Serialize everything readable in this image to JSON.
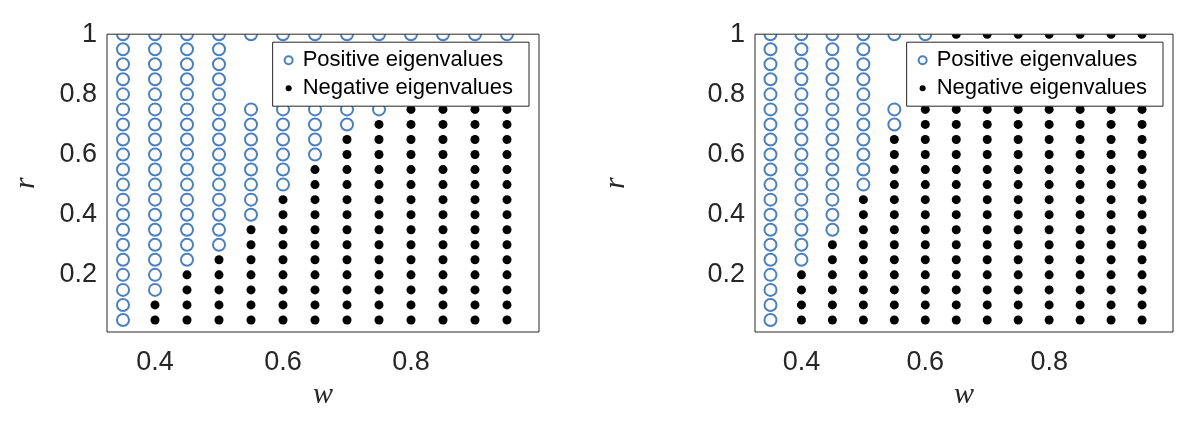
{
  "chart_data": [
    {
      "type": "scatter",
      "xlabel": "w",
      "ylabel": "r",
      "xlim": [
        0.325,
        1
      ],
      "ylim": [
        0.01,
        1
      ],
      "xticks": [
        0.4,
        0.6,
        0.8
      ],
      "yticks": [
        0.2,
        0.4,
        0.6,
        0.8,
        1
      ],
      "legend": "top right",
      "series": [
        {
          "name": "Positive eigenvalues",
          "color": "#4a80bf",
          "x": [
            0.35,
            0.35,
            0.35,
            0.4,
            0.35,
            0.4,
            0.35,
            0.4,
            0.45,
            0.35,
            0.4,
            0.45,
            0.5,
            0.35,
            0.4,
            0.45,
            0.5,
            0.35,
            0.4,
            0.45,
            0.5,
            0.55,
            0.35,
            0.4,
            0.45,
            0.5,
            0.55,
            0.35,
            0.4,
            0.45,
            0.5,
            0.55,
            0.6,
            0.35,
            0.4,
            0.45,
            0.5,
            0.55,
            0.6,
            0.35,
            0.4,
            0.45,
            0.5,
            0.55,
            0.6,
            0.65,
            0.35,
            0.4,
            0.45,
            0.5,
            0.55,
            0.6,
            0.65,
            0.35,
            0.4,
            0.45,
            0.5,
            0.55,
            0.6,
            0.65,
            0.7,
            0.35,
            0.4,
            0.45,
            0.5,
            0.55,
            0.6,
            0.65,
            0.7,
            0.75,
            0.35,
            0.4,
            0.45,
            0.5,
            0.35,
            0.4,
            0.45,
            0.5,
            0.35,
            0.4,
            0.45,
            0.5,
            0.35,
            0.4,
            0.45,
            0.5,
            0.35,
            0.4,
            0.45,
            0.5,
            0.55,
            0.6,
            0.65,
            0.7,
            0.75,
            0.8,
            0.85,
            0.9,
            0.95
          ],
          "values": [
            0.05,
            0.1,
            0.15,
            0.15,
            0.2,
            0.2,
            0.25,
            0.25,
            0.25,
            0.3,
            0.3,
            0.3,
            0.3,
            0.35,
            0.35,
            0.35,
            0.35,
            0.4,
            0.4,
            0.4,
            0.4,
            0.4,
            0.45,
            0.45,
            0.45,
            0.45,
            0.45,
            0.5,
            0.5,
            0.5,
            0.5,
            0.5,
            0.5,
            0.55,
            0.55,
            0.55,
            0.55,
            0.55,
            0.55,
            0.6,
            0.6,
            0.6,
            0.6,
            0.6,
            0.6,
            0.6,
            0.65,
            0.65,
            0.65,
            0.65,
            0.65,
            0.65,
            0.65,
            0.7,
            0.7,
            0.7,
            0.7,
            0.7,
            0.7,
            0.7,
            0.7,
            0.75,
            0.75,
            0.75,
            0.75,
            0.75,
            0.75,
            0.75,
            0.75,
            0.75,
            0.8,
            0.8,
            0.8,
            0.8,
            0.85,
            0.85,
            0.85,
            0.85,
            0.9,
            0.9,
            0.9,
            0.9,
            0.95,
            0.95,
            0.95,
            0.95,
            1,
            1,
            1,
            1,
            1,
            1,
            1,
            1,
            1,
            1,
            1,
            1,
            1
          ]
        },
        {
          "name": "Negative eigenvalues",
          "color": "#000000",
          "x": [
            0.4,
            0.45,
            0.5,
            0.55,
            0.6,
            0.65,
            0.7,
            0.75,
            0.8,
            0.85,
            0.9,
            0.95,
            0.4,
            0.45,
            0.5,
            0.55,
            0.6,
            0.65,
            0.7,
            0.75,
            0.8,
            0.85,
            0.9,
            0.95,
            0.45,
            0.5,
            0.55,
            0.6,
            0.65,
            0.7,
            0.75,
            0.8,
            0.85,
            0.9,
            0.95,
            0.45,
            0.5,
            0.55,
            0.6,
            0.65,
            0.7,
            0.75,
            0.8,
            0.85,
            0.9,
            0.95,
            0.5,
            0.55,
            0.6,
            0.65,
            0.7,
            0.75,
            0.8,
            0.85,
            0.9,
            0.95,
            0.55,
            0.6,
            0.65,
            0.7,
            0.75,
            0.8,
            0.85,
            0.9,
            0.95,
            0.55,
            0.6,
            0.65,
            0.7,
            0.75,
            0.8,
            0.85,
            0.9,
            0.95,
            0.6,
            0.65,
            0.7,
            0.75,
            0.8,
            0.85,
            0.9,
            0.95,
            0.6,
            0.65,
            0.7,
            0.75,
            0.8,
            0.85,
            0.9,
            0.95,
            0.65,
            0.7,
            0.75,
            0.8,
            0.85,
            0.9,
            0.95,
            0.65,
            0.7,
            0.75,
            0.8,
            0.85,
            0.9,
            0.95,
            0.7,
            0.75,
            0.8,
            0.85,
            0.9,
            0.95,
            0.7,
            0.75,
            0.8,
            0.85,
            0.9,
            0.95,
            0.75,
            0.8,
            0.85,
            0.9,
            0.95,
            0.8,
            0.85,
            0.9,
            0.95
          ],
          "values": [
            0.05,
            0.05,
            0.05,
            0.05,
            0.05,
            0.05,
            0.05,
            0.05,
            0.05,
            0.05,
            0.05,
            0.05,
            0.1,
            0.1,
            0.1,
            0.1,
            0.1,
            0.1,
            0.1,
            0.1,
            0.1,
            0.1,
            0.1,
            0.1,
            0.15,
            0.15,
            0.15,
            0.15,
            0.15,
            0.15,
            0.15,
            0.15,
            0.15,
            0.15,
            0.15,
            0.2,
            0.2,
            0.2,
            0.2,
            0.2,
            0.2,
            0.2,
            0.2,
            0.2,
            0.2,
            0.2,
            0.25,
            0.25,
            0.25,
            0.25,
            0.25,
            0.25,
            0.25,
            0.25,
            0.25,
            0.25,
            0.3,
            0.3,
            0.3,
            0.3,
            0.3,
            0.3,
            0.3,
            0.3,
            0.3,
            0.35,
            0.35,
            0.35,
            0.35,
            0.35,
            0.35,
            0.35,
            0.35,
            0.35,
            0.4,
            0.4,
            0.4,
            0.4,
            0.4,
            0.4,
            0.4,
            0.4,
            0.45,
            0.45,
            0.45,
            0.45,
            0.45,
            0.45,
            0.45,
            0.45,
            0.5,
            0.5,
            0.5,
            0.5,
            0.5,
            0.5,
            0.5,
            0.55,
            0.55,
            0.55,
            0.55,
            0.55,
            0.55,
            0.55,
            0.6,
            0.6,
            0.6,
            0.6,
            0.6,
            0.6,
            0.65,
            0.65,
            0.65,
            0.65,
            0.65,
            0.65,
            0.7,
            0.7,
            0.7,
            0.7,
            0.7,
            0.75,
            0.75,
            0.75,
            0.75
          ]
        }
      ]
    },
    {
      "type": "scatter",
      "xlabel": "w",
      "ylabel": "r",
      "xlim": [
        0.325,
        1
      ],
      "ylim": [
        0.01,
        1
      ],
      "xticks": [
        0.4,
        0.6,
        0.8
      ],
      "yticks": [
        0.2,
        0.4,
        0.6,
        0.8,
        1
      ],
      "legend": "top right",
      "series": [
        {
          "name": "Positive eigenvalues",
          "color": "#4a80bf",
          "x": [
            0.35,
            0.35,
            0.35,
            0.35,
            0.35,
            0.4,
            0.35,
            0.4,
            0.35,
            0.4,
            0.45,
            0.35,
            0.4,
            0.45,
            0.35,
            0.4,
            0.45,
            0.35,
            0.4,
            0.45,
            0.5,
            0.35,
            0.4,
            0.45,
            0.5,
            0.35,
            0.4,
            0.45,
            0.5,
            0.35,
            0.4,
            0.45,
            0.5,
            0.35,
            0.4,
            0.45,
            0.5,
            0.55,
            0.35,
            0.4,
            0.45,
            0.5,
            0.55,
            0.35,
            0.4,
            0.45,
            0.5,
            0.35,
            0.4,
            0.45,
            0.5,
            0.35,
            0.4,
            0.45,
            0.5,
            0.35,
            0.4,
            0.45,
            0.5,
            0.35,
            0.4,
            0.45,
            0.5,
            0.55,
            0.6
          ],
          "values": [
            0.05,
            0.1,
            0.15,
            0.2,
            0.25,
            0.25,
            0.3,
            0.3,
            0.35,
            0.35,
            0.35,
            0.4,
            0.4,
            0.4,
            0.45,
            0.45,
            0.45,
            0.5,
            0.5,
            0.5,
            0.5,
            0.55,
            0.55,
            0.55,
            0.55,
            0.6,
            0.6,
            0.6,
            0.6,
            0.65,
            0.65,
            0.65,
            0.65,
            0.7,
            0.7,
            0.7,
            0.7,
            0.7,
            0.75,
            0.75,
            0.75,
            0.75,
            0.75,
            0.8,
            0.8,
            0.8,
            0.8,
            0.85,
            0.85,
            0.85,
            0.85,
            0.9,
            0.9,
            0.9,
            0.9,
            0.95,
            0.95,
            0.95,
            0.95,
            1,
            1,
            1,
            1,
            1,
            1
          ]
        },
        {
          "name": "Negative eigenvalues",
          "color": "#000000",
          "x": [
            0.4,
            0.45,
            0.5,
            0.55,
            0.6,
            0.65,
            0.7,
            0.75,
            0.8,
            0.85,
            0.9,
            0.95,
            0.4,
            0.45,
            0.5,
            0.55,
            0.6,
            0.65,
            0.7,
            0.75,
            0.8,
            0.85,
            0.9,
            0.95,
            0.4,
            0.45,
            0.5,
            0.55,
            0.6,
            0.65,
            0.7,
            0.75,
            0.8,
            0.85,
            0.9,
            0.95,
            0.4,
            0.45,
            0.5,
            0.55,
            0.6,
            0.65,
            0.7,
            0.75,
            0.8,
            0.85,
            0.9,
            0.95,
            0.45,
            0.5,
            0.55,
            0.6,
            0.65,
            0.7,
            0.75,
            0.8,
            0.85,
            0.9,
            0.95,
            0.45,
            0.5,
            0.55,
            0.6,
            0.65,
            0.7,
            0.75,
            0.8,
            0.85,
            0.9,
            0.95,
            0.5,
            0.55,
            0.6,
            0.65,
            0.7,
            0.75,
            0.8,
            0.85,
            0.9,
            0.95,
            0.5,
            0.55,
            0.6,
            0.65,
            0.7,
            0.75,
            0.8,
            0.85,
            0.9,
            0.95,
            0.5,
            0.55,
            0.6,
            0.65,
            0.7,
            0.75,
            0.8,
            0.85,
            0.9,
            0.95,
            0.55,
            0.6,
            0.65,
            0.7,
            0.75,
            0.8,
            0.85,
            0.9,
            0.95,
            0.55,
            0.6,
            0.65,
            0.7,
            0.75,
            0.8,
            0.85,
            0.9,
            0.95,
            0.55,
            0.6,
            0.65,
            0.7,
            0.75,
            0.8,
            0.85,
            0.9,
            0.95,
            0.55,
            0.6,
            0.65,
            0.7,
            0.75,
            0.8,
            0.85,
            0.9,
            0.95,
            0.6,
            0.65,
            0.7,
            0.75,
            0.8,
            0.85,
            0.9,
            0.95,
            0.6,
            0.65,
            0.7,
            0.75,
            0.8,
            0.85,
            0.9,
            0.95,
            0.65,
            0.7,
            0.75,
            0.8,
            0.85,
            0.9,
            0.95
          ],
          "values": [
            0.05,
            0.05,
            0.05,
            0.05,
            0.05,
            0.05,
            0.05,
            0.05,
            0.05,
            0.05,
            0.05,
            0.05,
            0.1,
            0.1,
            0.1,
            0.1,
            0.1,
            0.1,
            0.1,
            0.1,
            0.1,
            0.1,
            0.1,
            0.1,
            0.15,
            0.15,
            0.15,
            0.15,
            0.15,
            0.15,
            0.15,
            0.15,
            0.15,
            0.15,
            0.15,
            0.15,
            0.2,
            0.2,
            0.2,
            0.2,
            0.2,
            0.2,
            0.2,
            0.2,
            0.2,
            0.2,
            0.2,
            0.2,
            0.25,
            0.25,
            0.25,
            0.25,
            0.25,
            0.25,
            0.25,
            0.25,
            0.25,
            0.25,
            0.25,
            0.3,
            0.3,
            0.3,
            0.3,
            0.3,
            0.3,
            0.3,
            0.3,
            0.3,
            0.3,
            0.3,
            0.35,
            0.35,
            0.35,
            0.35,
            0.35,
            0.35,
            0.35,
            0.35,
            0.35,
            0.35,
            0.4,
            0.4,
            0.4,
            0.4,
            0.4,
            0.4,
            0.4,
            0.4,
            0.4,
            0.4,
            0.45,
            0.45,
            0.45,
            0.45,
            0.45,
            0.45,
            0.45,
            0.45,
            0.45,
            0.45,
            0.5,
            0.5,
            0.5,
            0.5,
            0.5,
            0.5,
            0.5,
            0.5,
            0.5,
            0.55,
            0.55,
            0.55,
            0.55,
            0.55,
            0.55,
            0.55,
            0.55,
            0.55,
            0.6,
            0.6,
            0.6,
            0.6,
            0.6,
            0.6,
            0.6,
            0.6,
            0.6,
            0.65,
            0.65,
            0.65,
            0.65,
            0.65,
            0.65,
            0.65,
            0.65,
            0.65,
            0.7,
            0.7,
            0.7,
            0.7,
            0.7,
            0.7,
            0.7,
            0.7,
            0.75,
            0.75,
            0.75,
            0.75,
            0.75,
            0.75,
            0.75,
            0.75,
            1,
            1,
            1,
            1,
            1,
            1,
            1
          ]
        }
      ]
    }
  ]
}
